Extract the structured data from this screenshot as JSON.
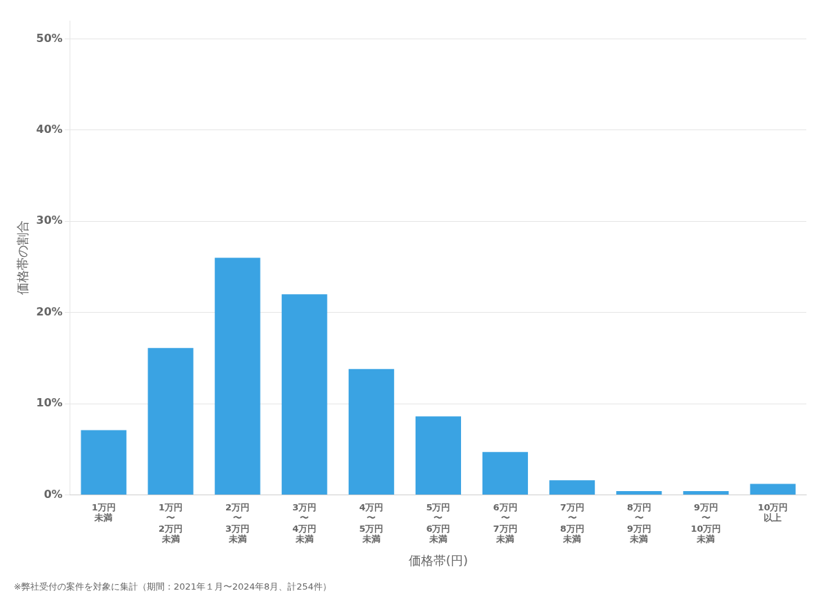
{
  "chart_data": {
    "type": "bar",
    "categories": [
      "1万円\n未満",
      "1万円\n〜\n2万円\n未満",
      "2万円\n〜\n3万円\n未満",
      "3万円\n〜\n4万円\n未満",
      "4万円\n〜\n5万円\n未満",
      "5万円\n〜\n6万円\n未満",
      "6万円\n〜\n7万円\n未満",
      "7万円\n〜\n8万円\n未満",
      "8万円\n〜\n9万円\n未満",
      "9万円\n〜\n10万円\n未満",
      "10万円\n以上"
    ],
    "values": [
      0.071,
      0.161,
      0.26,
      0.22,
      0.138,
      0.086,
      0.047,
      0.016,
      0.004,
      0.004,
      0.012
    ],
    "color": "#3aa3e3",
    "x_label": "価格帯(円)",
    "y_label": "価格帯の割合",
    "footnote": "※弊社受付の案件を対象に集計（期間：2021年１月〜2024年8月、計254件）",
    "ylim": [
      0,
      0.52
    ],
    "yticks": [
      {
        "value": 0.0,
        "label": "0%"
      },
      {
        "value": 0.1,
        "label": "10%"
      },
      {
        "value": 0.2,
        "label": "20%"
      },
      {
        "value": 0.3,
        "label": "30%"
      },
      {
        "value": 0.4,
        "label": "40%"
      },
      {
        "value": 0.5,
        "label": "50%"
      }
    ],
    "grid": true
  }
}
